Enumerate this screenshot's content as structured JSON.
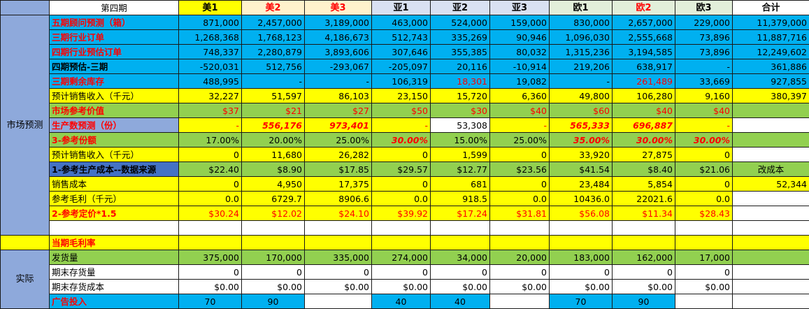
{
  "colors": {
    "category_bg": "#8ea9db",
    "yellow": "#ffff00",
    "cream": "#fff2cc",
    "lavender": "#d9e1f2",
    "light_green": "#e2efda",
    "white": "#ffffff",
    "blue": "#00b0f0",
    "green": "#92d050",
    "dark_blue": "#4472c4",
    "red_text": "#ff0000"
  },
  "header": {
    "title": "第四期",
    "columns": [
      {
        "label": "美1",
        "bg": "#ffff00",
        "red": false
      },
      {
        "label": "美2",
        "bg": "#fff2cc",
        "red": true
      },
      {
        "label": "美3",
        "bg": "#fff2cc",
        "red": true
      },
      {
        "label": "亚1",
        "bg": "#d9e1f2",
        "red": false
      },
      {
        "label": "亚2",
        "bg": "#d9e1f2",
        "red": false
      },
      {
        "label": "亚3",
        "bg": "#d9e1f2",
        "red": false
      },
      {
        "label": "欧1",
        "bg": "#e2efda",
        "red": false
      },
      {
        "label": "欧2",
        "bg": "#e2efda",
        "red": true
      },
      {
        "label": "欧3",
        "bg": "#e2efda",
        "red": false
      },
      {
        "label": "合计",
        "bg": "#ffffff",
        "red": false
      }
    ]
  },
  "groups": [
    {
      "label": "市场预测",
      "start": 0,
      "span": 15
    },
    {
      "label": "",
      "start": 15,
      "span": 1
    },
    {
      "label": "实际",
      "start": 16,
      "span": 4
    }
  ],
  "rows": [
    {
      "label": "五期顾问预测（箱）",
      "label_bg": "#00b0f0",
      "label_red": true,
      "label_bold": true,
      "bg": "#00b0f0",
      "cells": [
        {
          "v": "871,000"
        },
        {
          "v": "2,457,000"
        },
        {
          "v": "3,189,000"
        },
        {
          "v": "463,000"
        },
        {
          "v": "524,000"
        },
        {
          "v": "159,000"
        },
        {
          "v": "830,000"
        },
        {
          "v": "2,657,000"
        },
        {
          "v": "229,000"
        },
        {
          "v": "11,379,000"
        }
      ]
    },
    {
      "label": "三期行业订单",
      "label_bg": "#00b0f0",
      "label_red": true,
      "label_bold": true,
      "bg": "#00b0f0",
      "cells": [
        {
          "v": "1,268,368"
        },
        {
          "v": "1,768,123"
        },
        {
          "v": "4,186,673"
        },
        {
          "v": "512,743"
        },
        {
          "v": "335,269"
        },
        {
          "v": "90,946"
        },
        {
          "v": "1,096,030"
        },
        {
          "v": "2,555,668"
        },
        {
          "v": "73,896"
        },
        {
          "v": "11,887,716"
        }
      ]
    },
    {
      "label": "四期行业预估订单",
      "label_bg": "#00b0f0",
      "label_red": true,
      "label_bold": true,
      "bg": "#00b0f0",
      "cells": [
        {
          "v": "748,337"
        },
        {
          "v": "2,280,879"
        },
        {
          "v": "3,893,606"
        },
        {
          "v": "307,646"
        },
        {
          "v": "355,385"
        },
        {
          "v": "80,032"
        },
        {
          "v": "1,315,236"
        },
        {
          "v": "3,194,585"
        },
        {
          "v": "73,896"
        },
        {
          "v": "12,249,602"
        }
      ]
    },
    {
      "label": "四期预估-三期",
      "label_bg": "#00b0f0",
      "label_red": false,
      "label_bold": true,
      "bg": "#00b0f0",
      "cells": [
        {
          "v": "-520,031"
        },
        {
          "v": "512,756"
        },
        {
          "v": "-293,067"
        },
        {
          "v": "-205,097"
        },
        {
          "v": "20,116"
        },
        {
          "v": "-10,914"
        },
        {
          "v": "219,206"
        },
        {
          "v": "638,917"
        },
        {
          "v": "-"
        },
        {
          "v": "361,886"
        }
      ]
    },
    {
      "label": "三期剩余库存",
      "label_bg": "#00b0f0",
      "label_red": true,
      "label_bold": true,
      "bg": "#00b0f0",
      "cells": [
        {
          "v": "488,995"
        },
        {
          "v": "-"
        },
        {
          "v": "-"
        },
        {
          "v": "106,319"
        },
        {
          "v": "18,301",
          "red": true
        },
        {
          "v": "19,082"
        },
        {
          "v": "-"
        },
        {
          "v": "261,489",
          "red": true
        },
        {
          "v": "33,669"
        },
        {
          "v": "927,855"
        }
      ]
    },
    {
      "label": "预计销售收入（千元）",
      "label_bg": "#ffff00",
      "label_red": false,
      "label_bold": false,
      "bg": "#ffff00",
      "cells": [
        {
          "v": "32,227"
        },
        {
          "v": "51,597"
        },
        {
          "v": "86,103"
        },
        {
          "v": "23,150"
        },
        {
          "v": "15,720"
        },
        {
          "v": "6,360"
        },
        {
          "v": "49,800"
        },
        {
          "v": "106,280"
        },
        {
          "v": "9,160"
        },
        {
          "v": "380,397"
        }
      ]
    },
    {
      "label": "市场参考价值",
      "label_bg": "#92d050",
      "label_red": true,
      "label_bold": true,
      "bg": "#92d050",
      "cells": [
        {
          "v": "$37",
          "red": true
        },
        {
          "v": "$21",
          "red": true
        },
        {
          "v": "$27",
          "red": true
        },
        {
          "v": "$50",
          "red": true
        },
        {
          "v": "$30",
          "red": true
        },
        {
          "v": "$40",
          "red": true
        },
        {
          "v": "$60",
          "red": true
        },
        {
          "v": "$40",
          "red": true
        },
        {
          "v": "$40",
          "red": true
        },
        {
          "v": ""
        }
      ]
    },
    {
      "label": "生产数预测（份）",
      "label_bg": "#8ea9db",
      "label_red": true,
      "label_bold": true,
      "bg": "#ffff00",
      "cells": [
        {
          "v": "-",
          "red": true
        },
        {
          "v": "556,176",
          "red": true,
          "bi": true
        },
        {
          "v": "973,401",
          "red": true,
          "bi": true
        },
        {
          "v": "-",
          "red": true
        },
        {
          "v": "53,308",
          "bg": "#ffffff"
        },
        {
          "v": "-",
          "red": true
        },
        {
          "v": "565,333",
          "red": true,
          "bi": true
        },
        {
          "v": "696,887",
          "red": true,
          "bi": true
        },
        {
          "v": "-",
          "red": true
        },
        {
          "v": "",
          "bg": "#ffffff"
        }
      ]
    },
    {
      "label": "3-参考份额",
      "label_bg": "#92d050",
      "label_red": true,
      "label_bold": true,
      "bg": "#92d050",
      "cells": [
        {
          "v": "17.00%"
        },
        {
          "v": "20.00%"
        },
        {
          "v": "25.00%"
        },
        {
          "v": "30.00%",
          "red": true,
          "bi": true
        },
        {
          "v": "15.00%"
        },
        {
          "v": "25.00%"
        },
        {
          "v": "35.00%",
          "red": true,
          "bi": true
        },
        {
          "v": "30.00%",
          "red": true,
          "bi": true
        },
        {
          "v": "30.00%",
          "red": true,
          "bi": true
        },
        {
          "v": ""
        }
      ]
    },
    {
      "label": "预计销售收入（千元）",
      "label_bg": "#ffff00",
      "label_red": false,
      "label_bold": false,
      "bg": "#ffff00",
      "cells": [
        {
          "v": "0"
        },
        {
          "v": "11,680"
        },
        {
          "v": "26,282"
        },
        {
          "v": "0"
        },
        {
          "v": "1,599"
        },
        {
          "v": "0"
        },
        {
          "v": "33,920"
        },
        {
          "v": "27,875"
        },
        {
          "v": "0"
        },
        {
          "v": "",
          "bg": "#ffffff"
        }
      ]
    },
    {
      "label": "1-参考生产成本--数据来源",
      "label_bg": "#4472c4",
      "label_red": false,
      "label_bold": true,
      "bg": "#92d050",
      "cells": [
        {
          "v": "$22.40"
        },
        {
          "v": "$8.90"
        },
        {
          "v": "$17.85"
        },
        {
          "v": "$29.57"
        },
        {
          "v": "$12.77"
        },
        {
          "v": "$23.56"
        },
        {
          "v": "$41.54"
        },
        {
          "v": "$8.40"
        },
        {
          "v": "$21.06"
        },
        {
          "v": "改成本",
          "center": true
        }
      ]
    },
    {
      "label": "销售成本",
      "label_bg": "#ffff00",
      "label_red": false,
      "label_bold": false,
      "bg": "#ffff00",
      "cells": [
        {
          "v": "0"
        },
        {
          "v": "4,950"
        },
        {
          "v": "17,375"
        },
        {
          "v": "0"
        },
        {
          "v": "681"
        },
        {
          "v": "0"
        },
        {
          "v": "23,484"
        },
        {
          "v": "5,854"
        },
        {
          "v": "0"
        },
        {
          "v": "52,344"
        }
      ]
    },
    {
      "label": "参考毛利（千元）",
      "label_bg": "#ffff00",
      "label_red": false,
      "label_bold": false,
      "bg": "#ffff00",
      "cells": [
        {
          "v": "0.0"
        },
        {
          "v": "6729.7"
        },
        {
          "v": "8906.6"
        },
        {
          "v": "0.0"
        },
        {
          "v": "918.5"
        },
        {
          "v": "0.0"
        },
        {
          "v": "10436.0"
        },
        {
          "v": "22021.6"
        },
        {
          "v": "0.0"
        },
        {
          "v": "",
          "bg": "#ffffff"
        }
      ]
    },
    {
      "label": "2-参考定价*1.5",
      "label_bg": "#ffff00",
      "label_red": true,
      "label_bold": true,
      "bg": "#ffff00",
      "cells": [
        {
          "v": "$30.24",
          "red": true
        },
        {
          "v": "$12.02",
          "red": true
        },
        {
          "v": "$24.10",
          "red": true
        },
        {
          "v": "$39.92",
          "red": true
        },
        {
          "v": "$17.24",
          "red": true
        },
        {
          "v": "$31.81",
          "red": true
        },
        {
          "v": "$56.08",
          "red": true
        },
        {
          "v": "$11.34",
          "red": true
        },
        {
          "v": "$28.43",
          "red": true
        },
        {
          "v": "",
          "bg": "#ffffff"
        }
      ]
    },
    {
      "label": "",
      "label_bg": "#ffffff",
      "label_red": false,
      "label_bold": false,
      "bg": "#ffffff",
      "cells": [
        {
          "v": ""
        },
        {
          "v": ""
        },
        {
          "v": ""
        },
        {
          "v": ""
        },
        {
          "v": ""
        },
        {
          "v": ""
        },
        {
          "v": ""
        },
        {
          "v": ""
        },
        {
          "v": ""
        },
        {
          "v": ""
        }
      ]
    },
    {
      "label": "当期毛利率",
      "label_bg": "#ffff00",
      "label_red": true,
      "label_bold": true,
      "bg": "#ffff00",
      "cells": [
        {
          "v": ""
        },
        {
          "v": ""
        },
        {
          "v": ""
        },
        {
          "v": ""
        },
        {
          "v": ""
        },
        {
          "v": ""
        },
        {
          "v": ""
        },
        {
          "v": ""
        },
        {
          "v": ""
        },
        {
          "v": ""
        }
      ]
    },
    {
      "label": "发货量",
      "label_bg": "#92d050",
      "label_red": false,
      "label_bold": false,
      "bg": "#92d050",
      "cells": [
        {
          "v": "375,000"
        },
        {
          "v": "170,000"
        },
        {
          "v": "335,000"
        },
        {
          "v": "274,000"
        },
        {
          "v": "34,000"
        },
        {
          "v": "20,000"
        },
        {
          "v": "183,000"
        },
        {
          "v": "162,000"
        },
        {
          "v": "17,000"
        },
        {
          "v": ""
        }
      ]
    },
    {
      "label": "期末存货量",
      "label_bg": "#ffffff",
      "label_red": false,
      "label_bold": false,
      "bg": "#ffffff",
      "cells": [
        {
          "v": "0"
        },
        {
          "v": "0"
        },
        {
          "v": "0"
        },
        {
          "v": "0"
        },
        {
          "v": "0"
        },
        {
          "v": "0"
        },
        {
          "v": "0"
        },
        {
          "v": "0"
        },
        {
          "v": "0"
        },
        {
          "v": ""
        }
      ]
    },
    {
      "label": "期末存货成本",
      "label_bg": "#ffffff",
      "label_red": false,
      "label_bold": false,
      "bg": "#ffffff",
      "cells": [
        {
          "v": "$0.00"
        },
        {
          "v": "$0.00"
        },
        {
          "v": "$0.00"
        },
        {
          "v": "$0.00"
        },
        {
          "v": "$0.00"
        },
        {
          "v": "$0.00"
        },
        {
          "v": "$0.00"
        },
        {
          "v": "$0.00"
        },
        {
          "v": "$0.00"
        },
        {
          "v": ""
        }
      ]
    },
    {
      "label": "广告投入",
      "label_bg": "#00b0f0",
      "label_red": true,
      "label_bold": true,
      "bg": "#00b0f0",
      "cells": [
        {
          "v": "70",
          "center": true
        },
        {
          "v": "90",
          "center": true
        },
        {
          "v": "",
          "bg": "#ffffff"
        },
        {
          "v": "40",
          "center": true
        },
        {
          "v": "40",
          "center": true
        },
        {
          "v": "",
          "bg": "#ffffff"
        },
        {
          "v": "70",
          "center": true
        },
        {
          "v": "90",
          "center": true
        },
        {
          "v": "",
          "bg": "#ffffff"
        },
        {
          "v": "",
          "bg": "#ffffff"
        }
      ]
    }
  ]
}
